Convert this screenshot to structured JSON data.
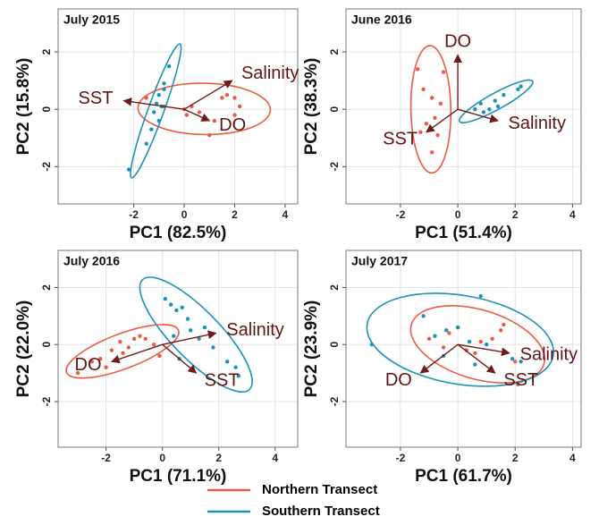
{
  "chart_data": [
    {
      "type": "scatter",
      "title": "July 2015",
      "x_label": "PC1 (82.5%)",
      "y_label": "PC2 (15.8%)",
      "xlim": [
        -5,
        4.5
      ],
      "ylim": [
        -3.3,
        3.5
      ],
      "xticks": [
        -2,
        0,
        2,
        4
      ],
      "yticks": [
        -2,
        0,
        2
      ],
      "grid": true,
      "series": [
        {
          "name": "Northern Transect",
          "color": "#ec5a45",
          "x": [
            -1.5,
            -0.8,
            0,
            0.3,
            0.6,
            1.0,
            1.2,
            1.5,
            1.7,
            2.0,
            2.2,
            2.0,
            0.1
          ],
          "y": [
            0.4,
            0.1,
            0,
            0.1,
            -0.1,
            -0.9,
            -0.4,
            0.4,
            0.5,
            0.4,
            0.1,
            -0.2,
            -0.2
          ]
        },
        {
          "name": "Southern Transect",
          "color": "#1a93b5",
          "x": [
            -0.6,
            -0.8,
            -1.0,
            -1.1,
            -1.2,
            -1.0,
            -1.3,
            -1.5,
            -0.9,
            -0.8,
            -2.2
          ],
          "y": [
            1.5,
            0.9,
            0.5,
            0.2,
            -0.1,
            -0.4,
            -0.7,
            -1.2,
            0.1,
            0.7,
            -2.1
          ]
        }
      ],
      "loading_color": "#6e1c1c",
      "loadings": [
        {
          "name": "SST",
          "x": -2.4,
          "y": 0.3
        },
        {
          "name": "Salinity",
          "x": 1.9,
          "y": 1.0
        },
        {
          "name": "DO",
          "x": 1.0,
          "y": -0.4
        }
      ]
    },
    {
      "type": "scatter",
      "title": "June 2016",
      "x_label": "PC1 (51.4%)",
      "y_label": "PC2 (38.3%)",
      "xlim": [
        -3.9,
        4.3
      ],
      "ylim": [
        -3.3,
        3.5
      ],
      "xticks": [
        -2,
        0,
        2,
        4
      ],
      "yticks": [
        -2,
        0,
        2
      ],
      "grid": true,
      "series": [
        {
          "name": "Northern Transect",
          "color": "#ec5a45",
          "x": [
            -1.4,
            -1.2,
            -0.9,
            -0.6,
            -0.8,
            -1.1,
            -0.7,
            -1.3,
            -0.5,
            -0.9
          ],
          "y": [
            1.4,
            0.7,
            0.4,
            0.2,
            -0.3,
            -0.5,
            -0.9,
            -0.8,
            1.3,
            -1.5
          ]
        },
        {
          "name": "Southern Transect",
          "color": "#1a93b5",
          "x": [
            0.6,
            0.8,
            1.1,
            1.3,
            1.6,
            2.1,
            2.2,
            0.9,
            1.4
          ],
          "y": [
            0,
            0.2,
            0,
            0.3,
            0.5,
            0.7,
            0.8,
            -0.1,
            0.1
          ]
        }
      ],
      "loading_color": "#6e1c1c",
      "loadings": [
        {
          "name": "DO",
          "x": 0,
          "y": 1.9
        },
        {
          "name": "SST",
          "x": -1.1,
          "y": -0.8
        },
        {
          "name": "Salinity",
          "x": 1.4,
          "y": -0.4
        }
      ]
    },
    {
      "type": "scatter",
      "title": "July 2016",
      "x_label": "PC1 (71.1%)",
      "y_label": "PC2 (22.0%)",
      "xlim": [
        -3.7,
        4.8
      ],
      "ylim": [
        -3.6,
        3.3
      ],
      "xticks": [
        -2,
        0,
        2,
        4
      ],
      "yticks": [
        -2,
        0,
        2
      ],
      "grid": true,
      "series": [
        {
          "name": "Northern Transect",
          "color": "#ec5a45",
          "x": [
            -3.0,
            -2.5,
            -2.2,
            -1.8,
            -1.5,
            -1.2,
            -1.0,
            -0.6,
            -0.3,
            -0.1,
            -2.0,
            -0.8,
            -1.4
          ],
          "y": [
            -1.0,
            -0.6,
            -0.5,
            -0.2,
            0.1,
            -0.1,
            0.2,
            0.2,
            0,
            -0.4,
            -0.8,
            0.3,
            -0.3
          ]
        },
        {
          "name": "Southern Transect",
          "color": "#1a93b5",
          "x": [
            0.1,
            0.3,
            0.5,
            0.7,
            0.9,
            1.0,
            1.3,
            1.8,
            2.3,
            2.6,
            2.7,
            0.6,
            1.5,
            0.4
          ],
          "y": [
            1.6,
            1.4,
            1.2,
            1.3,
            0.9,
            0.5,
            0.2,
            -0.1,
            -0.6,
            -0.8,
            -1.1,
            -0.5,
            0.6,
            0.3
          ]
        }
      ],
      "loading_color": "#6e1c1c",
      "loadings": [
        {
          "name": "Salinity",
          "x": 1.9,
          "y": 0.4
        },
        {
          "name": "DO",
          "x": -1.8,
          "y": -0.6
        },
        {
          "name": "SST",
          "x": 1.2,
          "y": -1.0
        }
      ]
    },
    {
      "type": "scatter",
      "title": "July 2017",
      "x_label": "PC1 (61.7%)",
      "y_label": "PC2 (23.9%)",
      "xlim": [
        -3.9,
        4.3
      ],
      "ylim": [
        -3.6,
        3.3
      ],
      "xticks": [
        -2,
        0,
        2,
        4
      ],
      "yticks": [
        -2,
        0,
        2
      ],
      "grid": true,
      "series": [
        {
          "name": "Northern Transect",
          "color": "#ec5a45",
          "x": [
            -1.0,
            -0.5,
            0,
            0.3,
            0.8,
            1.2,
            1.6,
            2.0,
            2.1,
            -0.3,
            0.6,
            1.5
          ],
          "y": [
            0.2,
            -0.1,
            0.6,
            -0.2,
            0.1,
            0.2,
            0.7,
            -0.6,
            -1.4,
            0.4,
            -0.3,
            0.5
          ]
        },
        {
          "name": "Southern Transect",
          "color": "#1a93b5",
          "x": [
            -3.0,
            -1.2,
            -0.8,
            -0.4,
            0,
            0.4,
            0.8,
            1.0,
            1.9,
            2.2,
            -0.5,
            0.6
          ],
          "y": [
            0,
            1.0,
            0.3,
            0.5,
            0.6,
            0.1,
            1.7,
            0,
            -0.5,
            -0.6,
            -0.4,
            -0.7
          ]
        }
      ],
      "loading_color": "#6e1c1c",
      "loadings": [
        {
          "name": "Salinity",
          "x": 1.8,
          "y": -0.3
        },
        {
          "name": "DO",
          "x": -1.3,
          "y": -1.0
        },
        {
          "name": "SST",
          "x": 1.3,
          "y": -1.0
        }
      ]
    }
  ]
}
